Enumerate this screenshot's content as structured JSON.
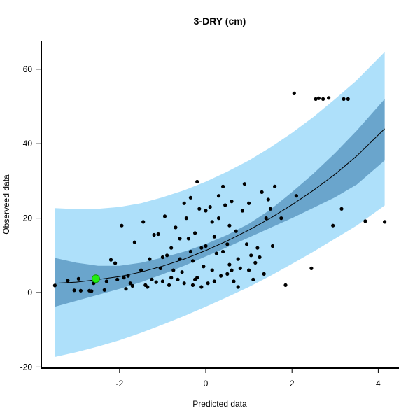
{
  "chart_data": {
    "type": "scatter",
    "title": "3-DRY (cm)",
    "xlabel": "Predicted data",
    "ylabel": "Observeed data",
    "xlim": [
      -3.6,
      4.4
    ],
    "ylim": [
      -20.5,
      67
    ],
    "x_ticks": [
      -2,
      0,
      2,
      4
    ],
    "y_ticks": [
      -20,
      0,
      20,
      40,
      60
    ],
    "grid": false,
    "colors": {
      "outer_band": "#aee0fa",
      "inner_band": "#6aa5cc",
      "fit_line": "#000000",
      "points": "#000000",
      "highlight": "#22ee11"
    },
    "fit_curve": {
      "x": [
        -3.5,
        -3.0,
        -2.5,
        -2.0,
        -1.5,
        -1.0,
        -0.5,
        0.0,
        0.5,
        1.0,
        1.5,
        2.0,
        2.5,
        3.0,
        3.5,
        4.15
      ],
      "y": [
        2.5,
        2.8,
        3.5,
        4.3,
        5.5,
        7.1,
        9.0,
        11.3,
        13.9,
        16.8,
        20.0,
        23.6,
        27.5,
        31.8,
        36.7,
        44.0
      ]
    },
    "confidence_band": {
      "x": [
        -3.5,
        -3.0,
        -2.5,
        -2.0,
        -1.5,
        -1.0,
        -0.5,
        0.0,
        0.5,
        1.0,
        1.5,
        2.0,
        2.5,
        3.0,
        3.5,
        4.15
      ],
      "lower": [
        -3.8,
        -2.2,
        -0.6,
        1.0,
        2.8,
        4.9,
        7.2,
        9.7,
        12.2,
        14.8,
        17.4,
        20.0,
        22.8,
        25.6,
        29.0,
        35.5
      ],
      "upper": [
        9.3,
        8.0,
        7.2,
        7.2,
        8.0,
        9.4,
        11.0,
        13.0,
        15.5,
        18.5,
        22.3,
        27.0,
        32.0,
        37.5,
        43.5,
        52.0
      ]
    },
    "prediction_band": {
      "x": [
        -3.5,
        -3.0,
        -2.5,
        -2.0,
        -1.5,
        -1.0,
        -0.5,
        0.0,
        0.5,
        1.0,
        1.5,
        2.0,
        2.5,
        3.0,
        3.5,
        4.15
      ],
      "lower": [
        -17.3,
        -16.0,
        -14.5,
        -12.8,
        -10.8,
        -8.6,
        -6.3,
        -3.8,
        -1.2,
        1.5,
        4.5,
        7.7,
        11.0,
        14.5,
        18.0,
        23.4
      ],
      "upper": [
        22.7,
        22.4,
        22.5,
        23.0,
        24.0,
        25.6,
        27.5,
        29.8,
        32.5,
        35.5,
        39.0,
        42.9,
        47.2,
        52.0,
        57.0,
        64.6
      ]
    },
    "highlight_point": {
      "x": -2.55,
      "y": 3.7
    },
    "points": [
      {
        "x": -3.5,
        "y": 1.9
      },
      {
        "x": -3.2,
        "y": 3.2
      },
      {
        "x": -3.05,
        "y": 0.6
      },
      {
        "x": -2.95,
        "y": 3.7
      },
      {
        "x": -2.9,
        "y": 0.5
      },
      {
        "x": -2.7,
        "y": 0.5
      },
      {
        "x": -2.65,
        "y": 0.4
      },
      {
        "x": -2.6,
        "y": 2.5
      },
      {
        "x": -2.35,
        "y": 0.7
      },
      {
        "x": -2.3,
        "y": 3.0
      },
      {
        "x": -2.2,
        "y": 8.8
      },
      {
        "x": -2.1,
        "y": 7.9
      },
      {
        "x": -2.05,
        "y": 3.5
      },
      {
        "x": -1.95,
        "y": 18.0
      },
      {
        "x": -1.9,
        "y": 4.0
      },
      {
        "x": -1.85,
        "y": 1.0
      },
      {
        "x": -1.8,
        "y": 4.5
      },
      {
        "x": -1.75,
        "y": 2.5
      },
      {
        "x": -1.7,
        "y": 1.8
      },
      {
        "x": -1.65,
        "y": 13.5
      },
      {
        "x": -1.5,
        "y": 6.0
      },
      {
        "x": -1.45,
        "y": 19.0
      },
      {
        "x": -1.4,
        "y": 2.0
      },
      {
        "x": -1.35,
        "y": 1.5
      },
      {
        "x": -1.3,
        "y": 9.0
      },
      {
        "x": -1.25,
        "y": 3.5
      },
      {
        "x": -1.2,
        "y": 15.5
      },
      {
        "x": -1.15,
        "y": 2.8
      },
      {
        "x": -1.1,
        "y": 15.7
      },
      {
        "x": -1.05,
        "y": 6.5
      },
      {
        "x": -1.0,
        "y": 3.0
      },
      {
        "x": -0.95,
        "y": 20.5
      },
      {
        "x": -0.9,
        "y": 10.0
      },
      {
        "x": -0.85,
        "y": 2.0
      },
      {
        "x": -0.8,
        "y": 4.0
      },
      {
        "x": -0.75,
        "y": 6.0
      },
      {
        "x": -0.7,
        "y": 17.5
      },
      {
        "x": -0.65,
        "y": 3.5
      },
      {
        "x": -0.6,
        "y": 9.0
      },
      {
        "x": -0.55,
        "y": 5.5
      },
      {
        "x": -0.5,
        "y": 2.5
      },
      {
        "x": -0.45,
        "y": 20.0
      },
      {
        "x": -0.4,
        "y": 14.5
      },
      {
        "x": -0.35,
        "y": 11.0
      },
      {
        "x": -0.3,
        "y": 8.5
      },
      {
        "x": -0.25,
        "y": 16.0
      },
      {
        "x": -0.2,
        "y": 4.0
      },
      {
        "x": -0.15,
        "y": 22.5
      },
      {
        "x": -0.1,
        "y": 1.5
      },
      {
        "x": -0.05,
        "y": 7.0
      },
      {
        "x": 0.0,
        "y": 12.5
      },
      {
        "x": 0.05,
        "y": 2.5
      },
      {
        "x": 0.1,
        "y": 23.0
      },
      {
        "x": 0.15,
        "y": 6.0
      },
      {
        "x": 0.2,
        "y": 15.0
      },
      {
        "x": 0.25,
        "y": 10.5
      },
      {
        "x": 0.3,
        "y": 20.0
      },
      {
        "x": 0.35,
        "y": 4.5
      },
      {
        "x": 0.4,
        "y": 28.5
      },
      {
        "x": 0.45,
        "y": 23.5
      },
      {
        "x": 0.5,
        "y": 13.0
      },
      {
        "x": 0.55,
        "y": 7.5
      },
      {
        "x": 0.6,
        "y": 24.5
      },
      {
        "x": 0.65,
        "y": 3.0
      },
      {
        "x": 0.7,
        "y": 16.5
      },
      {
        "x": 0.75,
        "y": 1.5
      },
      {
        "x": 0.8,
        "y": 6.5
      },
      {
        "x": 0.85,
        "y": 22.0
      },
      {
        "x": 0.9,
        "y": 29.2
      },
      {
        "x": 0.95,
        "y": 13.0
      },
      {
        "x": 1.0,
        "y": 24.0
      },
      {
        "x": 1.05,
        "y": 10.0
      },
      {
        "x": 1.1,
        "y": 3.5
      },
      {
        "x": 1.15,
        "y": 8.0
      },
      {
        "x": 1.2,
        "y": 12.0
      },
      {
        "x": 1.3,
        "y": 27.0
      },
      {
        "x": 1.35,
        "y": 5.0
      },
      {
        "x": 1.4,
        "y": 20.0
      },
      {
        "x": 1.45,
        "y": 25.0
      },
      {
        "x": 1.5,
        "y": 22.5
      },
      {
        "x": 1.55,
        "y": 12.5
      },
      {
        "x": 1.6,
        "y": 28.5
      },
      {
        "x": 1.75,
        "y": 20.0
      },
      {
        "x": 1.85,
        "y": 2.0
      },
      {
        "x": 2.05,
        "y": 53.5
      },
      {
        "x": 2.1,
        "y": 26.0
      },
      {
        "x": 2.45,
        "y": 6.5
      },
      {
        "x": 2.55,
        "y": 52.0
      },
      {
        "x": 2.62,
        "y": 52.2
      },
      {
        "x": 2.72,
        "y": 52.0
      },
      {
        "x": 2.85,
        "y": 52.3
      },
      {
        "x": 2.95,
        "y": 18.0
      },
      {
        "x": 3.15,
        "y": 22.5
      },
      {
        "x": 3.2,
        "y": 52.0
      },
      {
        "x": 3.3,
        "y": 52.0
      },
      {
        "x": 3.7,
        "y": 19.2
      },
      {
        "x": 4.15,
        "y": 19.0
      },
      {
        "x": -0.6,
        "y": 14.5
      },
      {
        "x": -0.3,
        "y": 2.0
      },
      {
        "x": 0.0,
        "y": 22.0
      },
      {
        "x": 0.2,
        "y": 3.0
      },
      {
        "x": 0.3,
        "y": 26.0
      },
      {
        "x": 0.55,
        "y": 18.0
      },
      {
        "x": -0.2,
        "y": 29.8
      },
      {
        "x": 0.6,
        "y": 6.0
      },
      {
        "x": 0.75,
        "y": 9.0
      },
      {
        "x": -0.8,
        "y": 12.0
      },
      {
        "x": -1.0,
        "y": 9.5
      },
      {
        "x": -0.35,
        "y": 25.5
      },
      {
        "x": 0.4,
        "y": 11.0
      },
      {
        "x": -0.1,
        "y": 12.0
      },
      {
        "x": 0.15,
        "y": 19.0
      },
      {
        "x": 1.0,
        "y": 6.0
      },
      {
        "x": 1.25,
        "y": 9.5
      },
      {
        "x": -0.5,
        "y": 24.0
      },
      {
        "x": 0.5,
        "y": 5.0
      },
      {
        "x": -0.25,
        "y": 3.5
      }
    ]
  }
}
